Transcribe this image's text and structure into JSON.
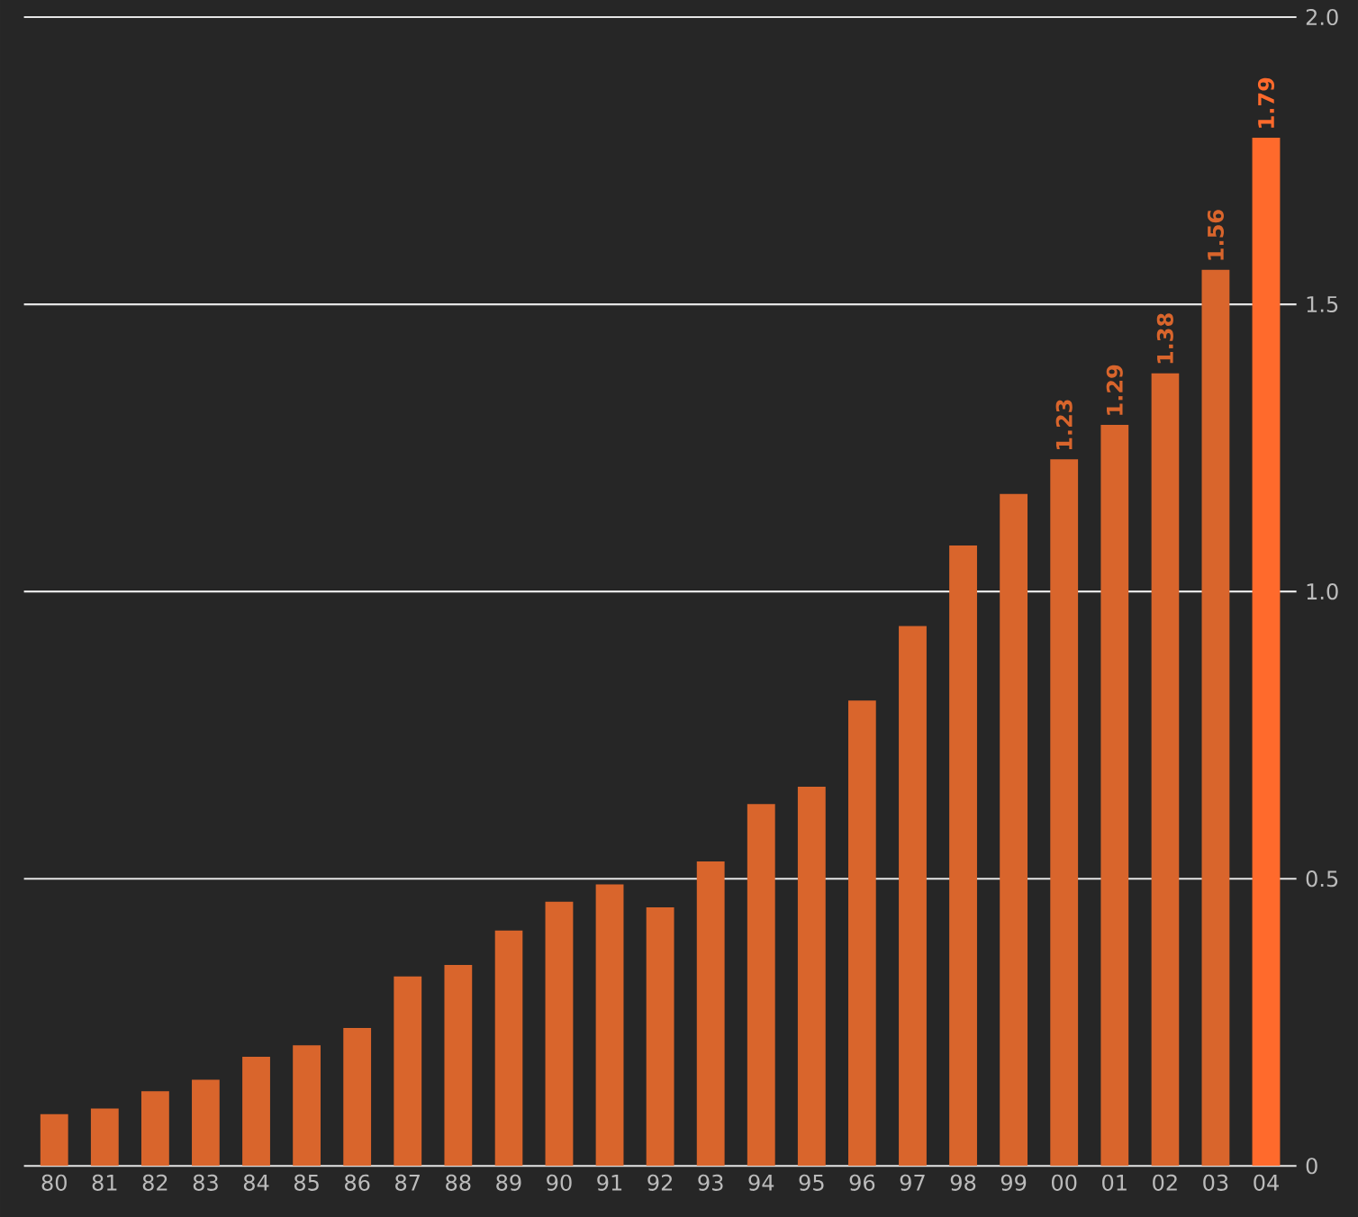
{
  "chart_data": {
    "type": "bar",
    "categories": [
      "80",
      "81",
      "82",
      "83",
      "84",
      "85",
      "86",
      "87",
      "88",
      "89",
      "90",
      "91",
      "92",
      "93",
      "94",
      "95",
      "96",
      "97",
      "98",
      "99",
      "00",
      "01",
      "02",
      "03",
      "04"
    ],
    "values": [
      0.09,
      0.1,
      0.13,
      0.15,
      0.19,
      0.21,
      0.24,
      0.33,
      0.35,
      0.41,
      0.46,
      0.49,
      0.45,
      0.53,
      0.63,
      0.66,
      0.81,
      0.94,
      1.08,
      1.17,
      1.23,
      1.29,
      1.38,
      1.56,
      1.79
    ],
    "colors": [
      "#d9652c",
      "#d9652c",
      "#d9652c",
      "#d9652c",
      "#d9652c",
      "#d9652c",
      "#d9652c",
      "#d9652c",
      "#d9652c",
      "#d9652c",
      "#d9652c",
      "#d9652c",
      "#d9652c",
      "#d9652c",
      "#d9652c",
      "#d9652c",
      "#d9652c",
      "#d9652c",
      "#d9652c",
      "#d9652c",
      "#d9652c",
      "#d9652c",
      "#d9652c",
      "#d9652c",
      "#ff6a2c"
    ],
    "value_labels": [
      null,
      null,
      null,
      null,
      null,
      null,
      null,
      null,
      null,
      null,
      null,
      null,
      null,
      null,
      null,
      null,
      null,
      null,
      null,
      null,
      "1.23",
      "1.29",
      "1.38",
      "1.56",
      "1.79"
    ],
    "ylim": [
      0,
      2.0
    ],
    "yticks": [
      0,
      0.5,
      {
        "value": 1.0,
        "label": "1.0"
      },
      1.5,
      {
        "value": 2.0,
        "label": "2.0"
      }
    ],
    "grid": "y"
  }
}
